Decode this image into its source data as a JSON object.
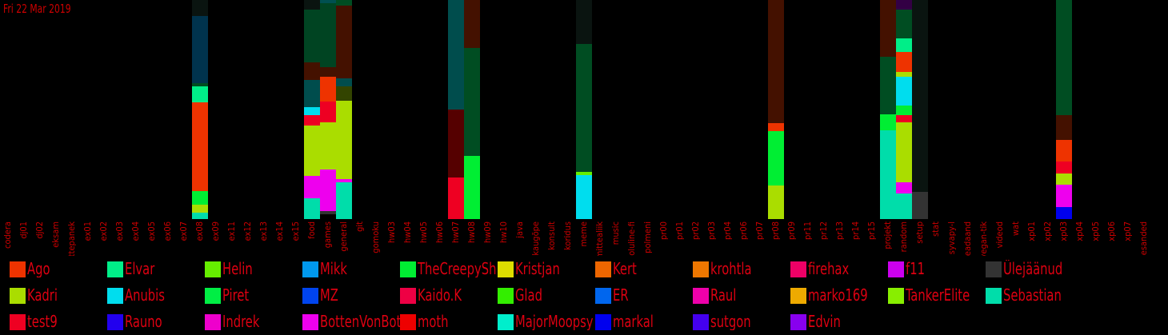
{
  "date": "Fri 22 Mar 2019",
  "chart_data": {
    "type": "bar",
    "stacked": true,
    "colors": {
      "Ago": "#ee3300",
      "Elvar": "#00ee88",
      "Helin": "#66ee00",
      "Mikk": "#0099ee",
      "TheCreepySh": "#00ee33",
      "Kristjan": "#dddd00",
      "Kert": "#ee6600",
      "krohtla": "#ee7700",
      "firehax": "#ee0066",
      "f11": "#cc00ee",
      "Ülejäänud": "#333333",
      "Kadri": "#aadd00",
      "Anubis": "#00ddee",
      "Piret": "#00ee44",
      "MZ": "#0044ee",
      "Kaido.K": "#ee0044",
      "Glad": "#33ee00",
      "ER": "#0066ee",
      "Raul": "#ee00aa",
      "marko169": "#eeaa00",
      "TankerElite": "#88ee00",
      "Sebastian": "#00ddaa",
      "test9": "#ee0022",
      "Rauno": "#2200ee",
      "Indrek": "#ee00cc",
      "BottenVonBot": "#ee00ee",
      "moth": "#ee0000",
      "MajorMoopsy": "#00eecc",
      "markal": "#0000ee",
      "sutgon": "#4400ee",
      "Edvin": "#8800ee",
      "sp_dgreen": "#004422",
      "sp_green": "#004d22",
      "sp_dred": "#441100",
      "sp_maroon": "#550000",
      "sp_teal": "#004d4d",
      "sp_navy": "#00334d",
      "sp_vdark": "#0a1410",
      "sp_olive": "#334400",
      "sp_purple": "#330044",
      "sp_dteal": "#005050"
    },
    "categories": [
      "codera",
      "dj01",
      "dj02",
      "eksam",
      "ettepanek",
      "ex01",
      "ex02",
      "ex03",
      "ex04",
      "ex05",
      "ex06",
      "ex07",
      "ex08",
      "ex09",
      "ex11",
      "ex12",
      "ex13",
      "ex14",
      "ex15",
      "food",
      "games",
      "general",
      "git",
      "gomoku",
      "hw03",
      "hw04",
      "hw05",
      "hw06",
      "hw07",
      "hw08",
      "hw09",
      "hw10",
      "java",
      "kaugõpe",
      "konsult",
      "koridus",
      "meme",
      "mittealiik",
      "music",
      "oluline-fi",
      "polmeni",
      "pr00",
      "pr01",
      "pr02",
      "pr03",
      "pr04",
      "pr06",
      "pr07",
      "pr08",
      "pr09",
      "pr11",
      "pr12",
      "pr13",
      "pr14",
      "pr15",
      "projekt",
      "random",
      "setup",
      "stat",
      "syvapy-l",
      "teadaand",
      "vegan-tik",
      "videod",
      "wat",
      "xp01",
      "xp02",
      "xp03",
      "xp04",
      "xp05",
      "xp06",
      "xp07",
      "ülesanded"
    ],
    "stacks": [
      {
        "category": "ex08",
        "segments": [
          {
            "name": "sp_vdark",
            "value": 20
          },
          {
            "name": "sp_navy",
            "value": 84
          },
          {
            "name": "sp_green",
            "value": 4
          },
          {
            "name": "Elvar",
            "value": 20
          },
          {
            "name": "Ago",
            "value": 111
          },
          {
            "name": "TheCreepySh",
            "value": 17
          },
          {
            "name": "Kadri",
            "value": 10
          },
          {
            "name": "Sebastian",
            "value": 8
          }
        ]
      },
      {
        "category": "food",
        "segments": [
          {
            "name": "sp_vdark",
            "value": 12
          },
          {
            "name": "sp_dgreen",
            "value": 66
          },
          {
            "name": "sp_dred",
            "value": 22
          },
          {
            "name": "sp_teal",
            "value": 34
          },
          {
            "name": "Anubis",
            "value": 10
          },
          {
            "name": "test9",
            "value": 13
          },
          {
            "name": "Kadri",
            "value": 63
          },
          {
            "name": "BottenVonBot",
            "value": 28
          },
          {
            "name": "Sebastian",
            "value": 26
          }
        ]
      },
      {
        "category": "games",
        "segments": [
          {
            "name": "sp_dteal",
            "value": 4
          },
          {
            "name": "sp_dgreen",
            "value": 80
          },
          {
            "name": "sp_dred",
            "value": 12
          },
          {
            "name": "Ago",
            "value": 31
          },
          {
            "name": "test9",
            "value": 26
          },
          {
            "name": "Kadri",
            "value": 59
          },
          {
            "name": "BottenVonBot",
            "value": 52
          },
          {
            "name": "Ülejäänud",
            "value": 4
          }
        ]
      },
      {
        "category": "general",
        "segments": [
          {
            "name": "sp_green",
            "value": 7
          },
          {
            "name": "sp_dred",
            "value": 91
          },
          {
            "name": "sp_teal",
            "value": 10
          },
          {
            "name": "sp_olive",
            "value": 18
          },
          {
            "name": "Kadri",
            "value": 98
          },
          {
            "name": "BottenVonBot",
            "value": 4
          },
          {
            "name": "Sebastian",
            "value": 46
          }
        ]
      },
      {
        "category": "hw07",
        "segments": [
          {
            "name": "sp_teal",
            "value": 137
          },
          {
            "name": "sp_maroon",
            "value": 85
          },
          {
            "name": "test9",
            "value": 52
          }
        ]
      },
      {
        "category": "hw08",
        "segments": [
          {
            "name": "sp_dred",
            "value": 60
          },
          {
            "name": "sp_green",
            "value": 135
          },
          {
            "name": "TheCreepySh",
            "value": 79
          }
        ]
      },
      {
        "category": "meme",
        "segments": [
          {
            "name": "sp_vdark",
            "value": 55
          },
          {
            "name": "sp_green",
            "value": 160
          },
          {
            "name": "Helin",
            "value": 4
          },
          {
            "name": "Anubis",
            "value": 55
          }
        ]
      },
      {
        "category": "pr08",
        "segments": [
          {
            "name": "sp_dred",
            "value": 154
          },
          {
            "name": "Ago",
            "value": 10
          },
          {
            "name": "TheCreepySh",
            "value": 68
          },
          {
            "name": "Kadri",
            "value": 42
          }
        ]
      },
      {
        "category": "projekt",
        "segments": [
          {
            "name": "sp_dred",
            "value": 71
          },
          {
            "name": "sp_green",
            "value": 72
          },
          {
            "name": "TheCreepySh",
            "value": 20
          },
          {
            "name": "Sebastian",
            "value": 111
          }
        ]
      },
      {
        "category": "random",
        "segments": [
          {
            "name": "sp_purple",
            "value": 12
          },
          {
            "name": "sp_green",
            "value": 36
          },
          {
            "name": "Elvar",
            "value": 17
          },
          {
            "name": "Ago",
            "value": 25
          },
          {
            "name": "Kadri",
            "value": 6
          },
          {
            "name": "Anubis",
            "value": 36
          },
          {
            "name": "TheCreepySh",
            "value": 12
          },
          {
            "name": "test9",
            "value": 9
          },
          {
            "name": "Kadri",
            "value": 75
          },
          {
            "name": "BottenVonBot",
            "value": 14
          },
          {
            "name": "Sebastian",
            "value": 32
          }
        ]
      },
      {
        "category": "setup",
        "segments": [
          {
            "name": "sp_vdark",
            "value": 240
          },
          {
            "name": "Ülejäänud",
            "value": 34
          }
        ]
      },
      {
        "category": "xp03",
        "segments": [
          {
            "name": "sp_green",
            "value": 144
          },
          {
            "name": "sp_dred",
            "value": 31
          },
          {
            "name": "Ago",
            "value": 27
          },
          {
            "name": "test9",
            "value": 15
          },
          {
            "name": "Kadri",
            "value": 14
          },
          {
            "name": "BottenVonBot",
            "value": 28
          },
          {
            "name": "markal",
            "value": 15
          }
        ]
      }
    ],
    "ylim": [
      0,
      274
    ],
    "legend": {
      "placement": "bottom",
      "entries": [
        {
          "name": "Ago",
          "color": "#ee3300"
        },
        {
          "name": "Elvar",
          "color": "#00ee88"
        },
        {
          "name": "Helin",
          "color": "#66ee00"
        },
        {
          "name": "Mikk",
          "color": "#0099ee"
        },
        {
          "name": "TheCreepySh",
          "color": "#00ee33"
        },
        {
          "name": "Kristjan",
          "color": "#dddd00"
        },
        {
          "name": "Kert",
          "color": "#ee6600"
        },
        {
          "name": "krohtla",
          "color": "#ee7700"
        },
        {
          "name": "firehax",
          "color": "#ee0066"
        },
        {
          "name": "f11",
          "color": "#cc00ee"
        },
        {
          "name": "Ülejäänud",
          "color": "#333333"
        },
        {
          "name": "Kadri",
          "color": "#aadd00"
        },
        {
          "name": "Anubis",
          "color": "#00ddee"
        },
        {
          "name": "Piret",
          "color": "#00ee44"
        },
        {
          "name": "MZ",
          "color": "#0044ee"
        },
        {
          "name": "Kaido.K",
          "color": "#ee0044"
        },
        {
          "name": "Glad",
          "color": "#33ee00"
        },
        {
          "name": "ER",
          "color": "#0066ee"
        },
        {
          "name": "Raul",
          "color": "#ee00aa"
        },
        {
          "name": "marko169",
          "color": "#eeaa00"
        },
        {
          "name": "TankerElite",
          "color": "#88ee00"
        },
        {
          "name": "Sebastian",
          "color": "#00ddaa"
        },
        {
          "name": "test9",
          "color": "#ee0022"
        },
        {
          "name": "Rauno",
          "color": "#2200ee"
        },
        {
          "name": "Indrek",
          "color": "#ee00cc"
        },
        {
          "name": "BottenVonBot",
          "color": "#ee00ee"
        },
        {
          "name": "moth",
          "color": "#ee0000"
        },
        {
          "name": "MajorMoopsy",
          "color": "#00eecc"
        },
        {
          "name": "markal",
          "color": "#0000ee"
        },
        {
          "name": "sutgon",
          "color": "#4400ee"
        },
        {
          "name": "Edvin",
          "color": "#8800ee"
        }
      ]
    }
  }
}
